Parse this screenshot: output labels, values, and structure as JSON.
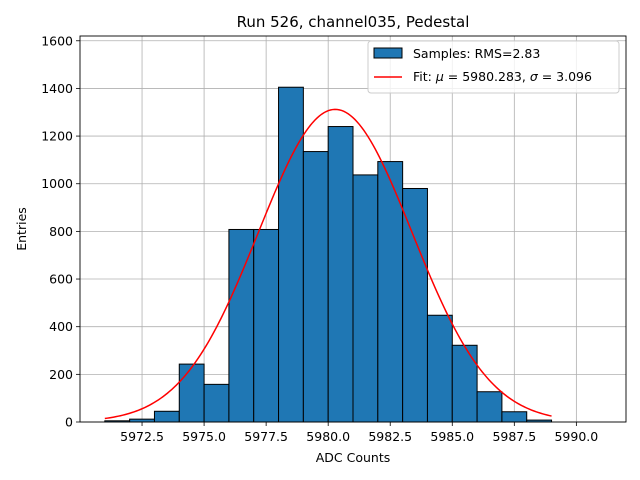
{
  "chart_data": {
    "type": "bar",
    "title": "Run 526, channel035, Pedestal",
    "xlabel": "ADC Counts",
    "ylabel": "Entries",
    "xlim": [
      5970.0,
      5992.0
    ],
    "ylim": [
      0,
      1620
    ],
    "xticks": [
      5972.5,
      5975.0,
      5977.5,
      5980.0,
      5982.5,
      5985.0,
      5987.5,
      5990.0
    ],
    "xtick_labels": [
      "5972.5",
      "5975.0",
      "5977.5",
      "5980.0",
      "5982.5",
      "5985.0",
      "5987.5",
      "5990.0"
    ],
    "yticks": [
      0,
      200,
      400,
      600,
      800,
      1000,
      1200,
      1400,
      1600
    ],
    "ytick_labels": [
      "0",
      "200",
      "400",
      "600",
      "800",
      "1000",
      "1200",
      "1400",
      "1600"
    ],
    "grid": true,
    "legend_position": "top-right",
    "bins": [
      {
        "x0": 5971.0,
        "x1": 5972.0,
        "count": 5
      },
      {
        "x0": 5972.0,
        "x1": 5973.0,
        "count": 12
      },
      {
        "x0": 5973.0,
        "x1": 5974.0,
        "count": 45
      },
      {
        "x0": 5974.0,
        "x1": 5975.0,
        "count": 243
      },
      {
        "x0": 5975.0,
        "x1": 5976.0,
        "count": 158
      },
      {
        "x0": 5976.0,
        "x1": 5977.0,
        "count": 808
      },
      {
        "x0": 5977.0,
        "x1": 5978.0,
        "count": 808
      },
      {
        "x0": 5978.0,
        "x1": 5979.0,
        "count": 1405
      },
      {
        "x0": 5979.0,
        "x1": 5980.0,
        "count": 1135
      },
      {
        "x0": 5980.0,
        "x1": 5981.0,
        "count": 1240
      },
      {
        "x0": 5981.0,
        "x1": 5982.0,
        "count": 1037
      },
      {
        "x0": 5982.0,
        "x1": 5983.0,
        "count": 1093
      },
      {
        "x0": 5983.0,
        "x1": 5984.0,
        "count": 980
      },
      {
        "x0": 5984.0,
        "x1": 5985.0,
        "count": 448
      },
      {
        "x0": 5985.0,
        "x1": 5986.0,
        "count": 322
      },
      {
        "x0": 5986.0,
        "x1": 5987.0,
        "count": 127
      },
      {
        "x0": 5987.0,
        "x1": 5988.0,
        "count": 43
      },
      {
        "x0": 5988.0,
        "x1": 5989.0,
        "count": 8
      },
      {
        "x0": 5989.0,
        "x1": 5990.0,
        "count": 0
      },
      {
        "x0": 5990.0,
        "x1": 5991.0,
        "count": 0
      }
    ],
    "fit": {
      "type": "gaussian",
      "mu": 5980.283,
      "sigma": 3.096,
      "amplitude": 1312,
      "x_range": [
        5971.0,
        5989.0
      ]
    },
    "series": [
      {
        "name": "Samples: RMS=2.83",
        "kind": "histogram",
        "color": "#1f77b4",
        "edgecolor": "#000000"
      },
      {
        "name": "Fit: μ = 5980.283, σ = 3.096",
        "kind": "line",
        "color": "#ff0000"
      }
    ]
  },
  "legend": {
    "samples_label": "Samples: RMS=2.83",
    "fit_label_prefix": "Fit: ",
    "fit_mu_symbol": "μ",
    "fit_mu_value": " = 5980.283, ",
    "fit_sigma_symbol": "σ",
    "fit_sigma_value": " = 3.096"
  }
}
